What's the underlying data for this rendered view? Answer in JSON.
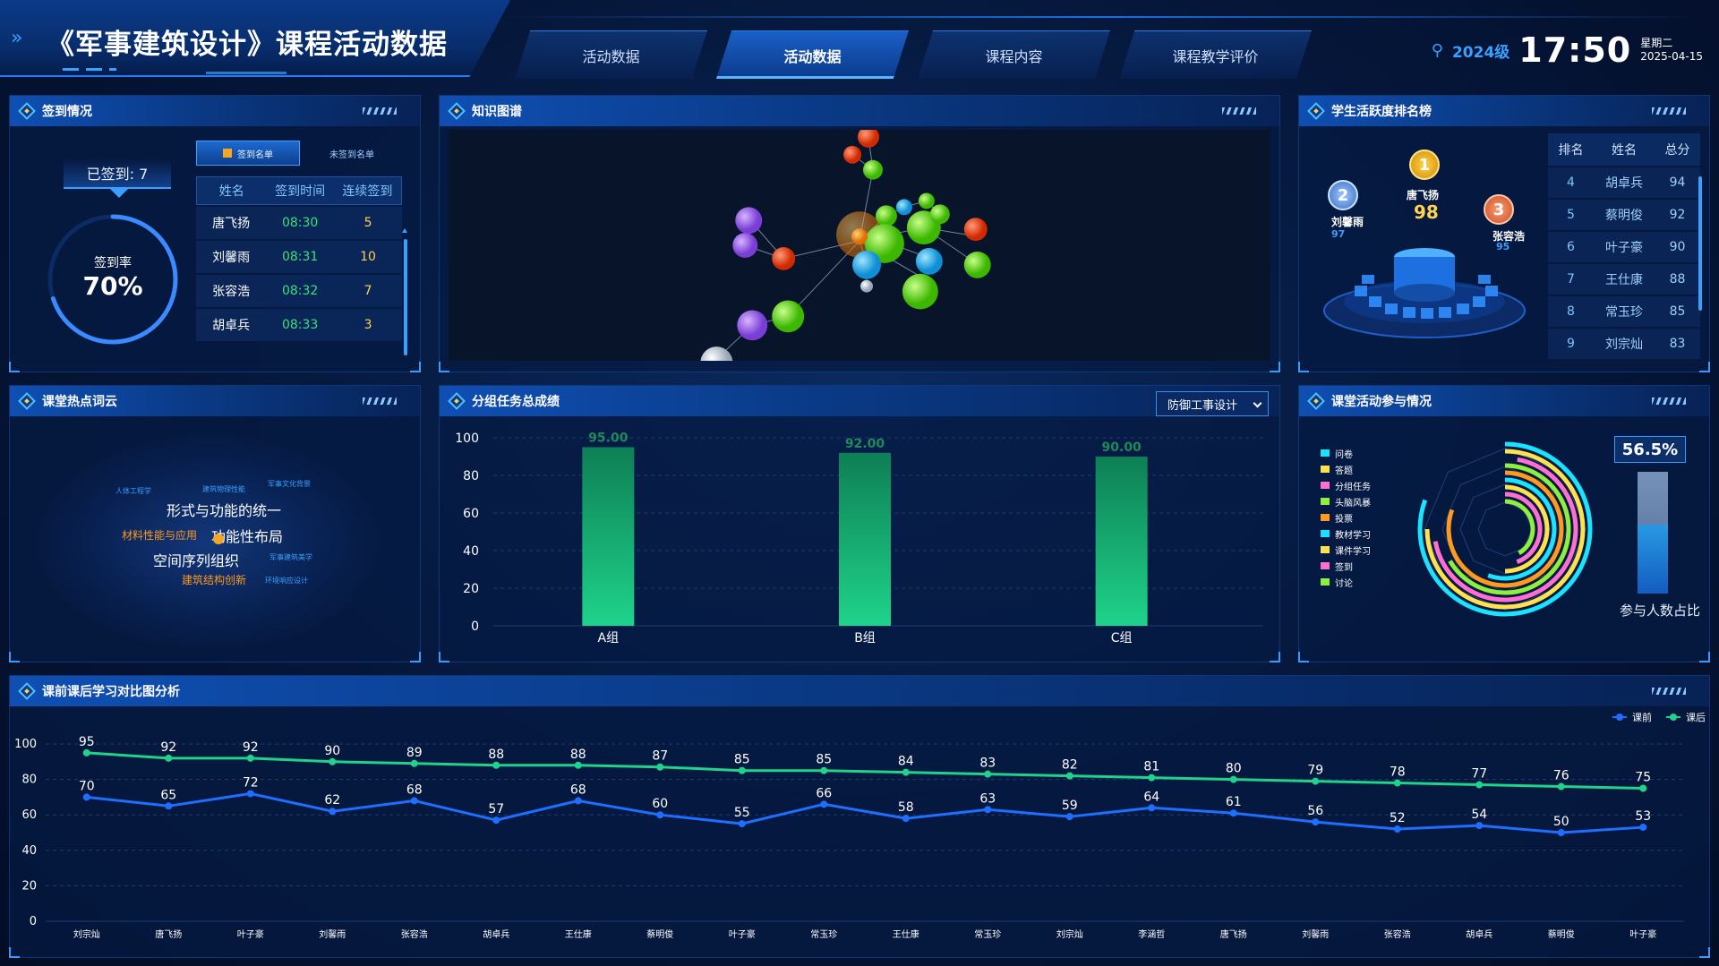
{
  "header": {
    "title": "《军事建筑设计》课程活动数据",
    "nav_tabs": [
      {
        "label": "活动数据",
        "active": false
      },
      {
        "label": "活动数据",
        "active": true
      },
      {
        "label": "课程内容",
        "active": false
      },
      {
        "label": "课程教学评价",
        "active": false
      }
    ],
    "grade": "2024级",
    "time": "17:50",
    "weekday": "星期二",
    "date": "2025-04-15"
  },
  "signin": {
    "title": "签到情况",
    "signed_label": "已签到: 7",
    "rate_label": "签到率",
    "rate_value": "70%",
    "rate_fraction": 0.7,
    "tabs": [
      "签到名单",
      "未签到名单"
    ],
    "columns": [
      "姓名",
      "签到时间",
      "连续签到"
    ],
    "rows": [
      {
        "name": "唐飞扬",
        "time": "08:30",
        "streak": "5"
      },
      {
        "name": "刘馨雨",
        "time": "08:31",
        "streak": "10"
      },
      {
        "name": "张容浩",
        "time": "08:32",
        "streak": "7"
      },
      {
        "name": "胡卓兵",
        "time": "08:33",
        "streak": "3"
      }
    ]
  },
  "knowledge": {
    "title": "知识图谱"
  },
  "ranking": {
    "title": "学生活跃度排名榜",
    "columns": [
      "排名",
      "姓名",
      "总分"
    ],
    "podium": [
      {
        "rank": "1",
        "name": "唐飞扬",
        "score": "98"
      },
      {
        "rank": "2",
        "name": "刘馨雨",
        "score": "97"
      },
      {
        "rank": "3",
        "name": "张容浩",
        "score": "95"
      }
    ],
    "rows": [
      {
        "rank": "4",
        "name": "胡卓兵",
        "score": "94"
      },
      {
        "rank": "5",
        "name": "蔡明俊",
        "score": "92"
      },
      {
        "rank": "6",
        "name": "叶子豪",
        "score": "90"
      },
      {
        "rank": "7",
        "name": "王仕康",
        "score": "88"
      },
      {
        "rank": "8",
        "name": "常玉珍",
        "score": "85"
      },
      {
        "rank": "9",
        "name": "刘宗灿",
        "score": "83"
      }
    ]
  },
  "wordcloud": {
    "title": "课堂热点词云",
    "words": [
      "形式与功能的统一",
      "功能性布局",
      "空间序列组织",
      "材料性能与应用",
      "建筑结构创新",
      "人体工程学",
      "建筑物理性能",
      "军事文化背景",
      "军事建筑美学",
      "环境响应设计"
    ]
  },
  "group_chart": {
    "title": "分组任务总成绩",
    "select_value": "防御工事设计"
  },
  "participation": {
    "title": "课堂活动参与情况",
    "legend": [
      {
        "label": "问卷",
        "color": "#19e3ff"
      },
      {
        "label": "答题",
        "color": "#ffe14d"
      },
      {
        "label": "分组任务",
        "color": "#ff6fd1"
      },
      {
        "label": "头脑风暴",
        "color": "#8cf03c"
      },
      {
        "label": "投票",
        "color": "#ff9a1f"
      },
      {
        "label": "教材学习",
        "color": "#19e3ff"
      },
      {
        "label": "课件学习",
        "color": "#ffe14d"
      },
      {
        "label": "签到",
        "color": "#ff6fd1"
      },
      {
        "label": "讨论",
        "color": "#8cf03c"
      }
    ],
    "percent_label": "56.5%",
    "percent_value": 0.565,
    "bar_label": "参与人数占比"
  },
  "compare": {
    "title": "课前课后学习对比图分析"
  },
  "chart_data": [
    {
      "type": "bar",
      "categories": [
        "A组",
        "B组",
        "C组"
      ],
      "values": [
        95.0,
        92.0,
        90.0
      ],
      "value_labels": [
        "95.00",
        "92.00",
        "90.00"
      ],
      "ylim": [
        0,
        100
      ],
      "yticks": [
        0,
        20,
        40,
        60,
        80,
        100
      ],
      "grid": true
    },
    {
      "type": "line",
      "categories": [
        "刘宗灿",
        "唐飞扬",
        "叶子豪",
        "刘馨雨",
        "张容浩",
        "胡卓兵",
        "王仕康",
        "蔡明俊",
        "叶子豪",
        "常玉珍",
        "王仕康",
        "常玉珍",
        "刘宗灿",
        "李涵哲",
        "唐飞扬",
        "刘馨雨",
        "张容浩",
        "胡卓兵",
        "蔡明俊",
        "叶子豪"
      ],
      "series": [
        {
          "name": "课前",
          "color": "#1e6fff",
          "values": [
            70,
            65,
            72,
            62,
            68,
            57,
            68,
            60,
            55,
            66,
            58,
            63,
            59,
            64,
            61,
            56,
            52,
            54,
            50,
            53
          ]
        },
        {
          "name": "课后",
          "color": "#1fd38a",
          "values": [
            95,
            92,
            92,
            90,
            89,
            88,
            88,
            87,
            85,
            85,
            84,
            83,
            82,
            81,
            80,
            79,
            78,
            77,
            76,
            75
          ]
        }
      ],
      "ylim": [
        0,
        100
      ],
      "yticks": [
        0,
        20,
        40,
        60,
        80,
        100
      ],
      "legend": "top-right",
      "grid": true
    }
  ]
}
